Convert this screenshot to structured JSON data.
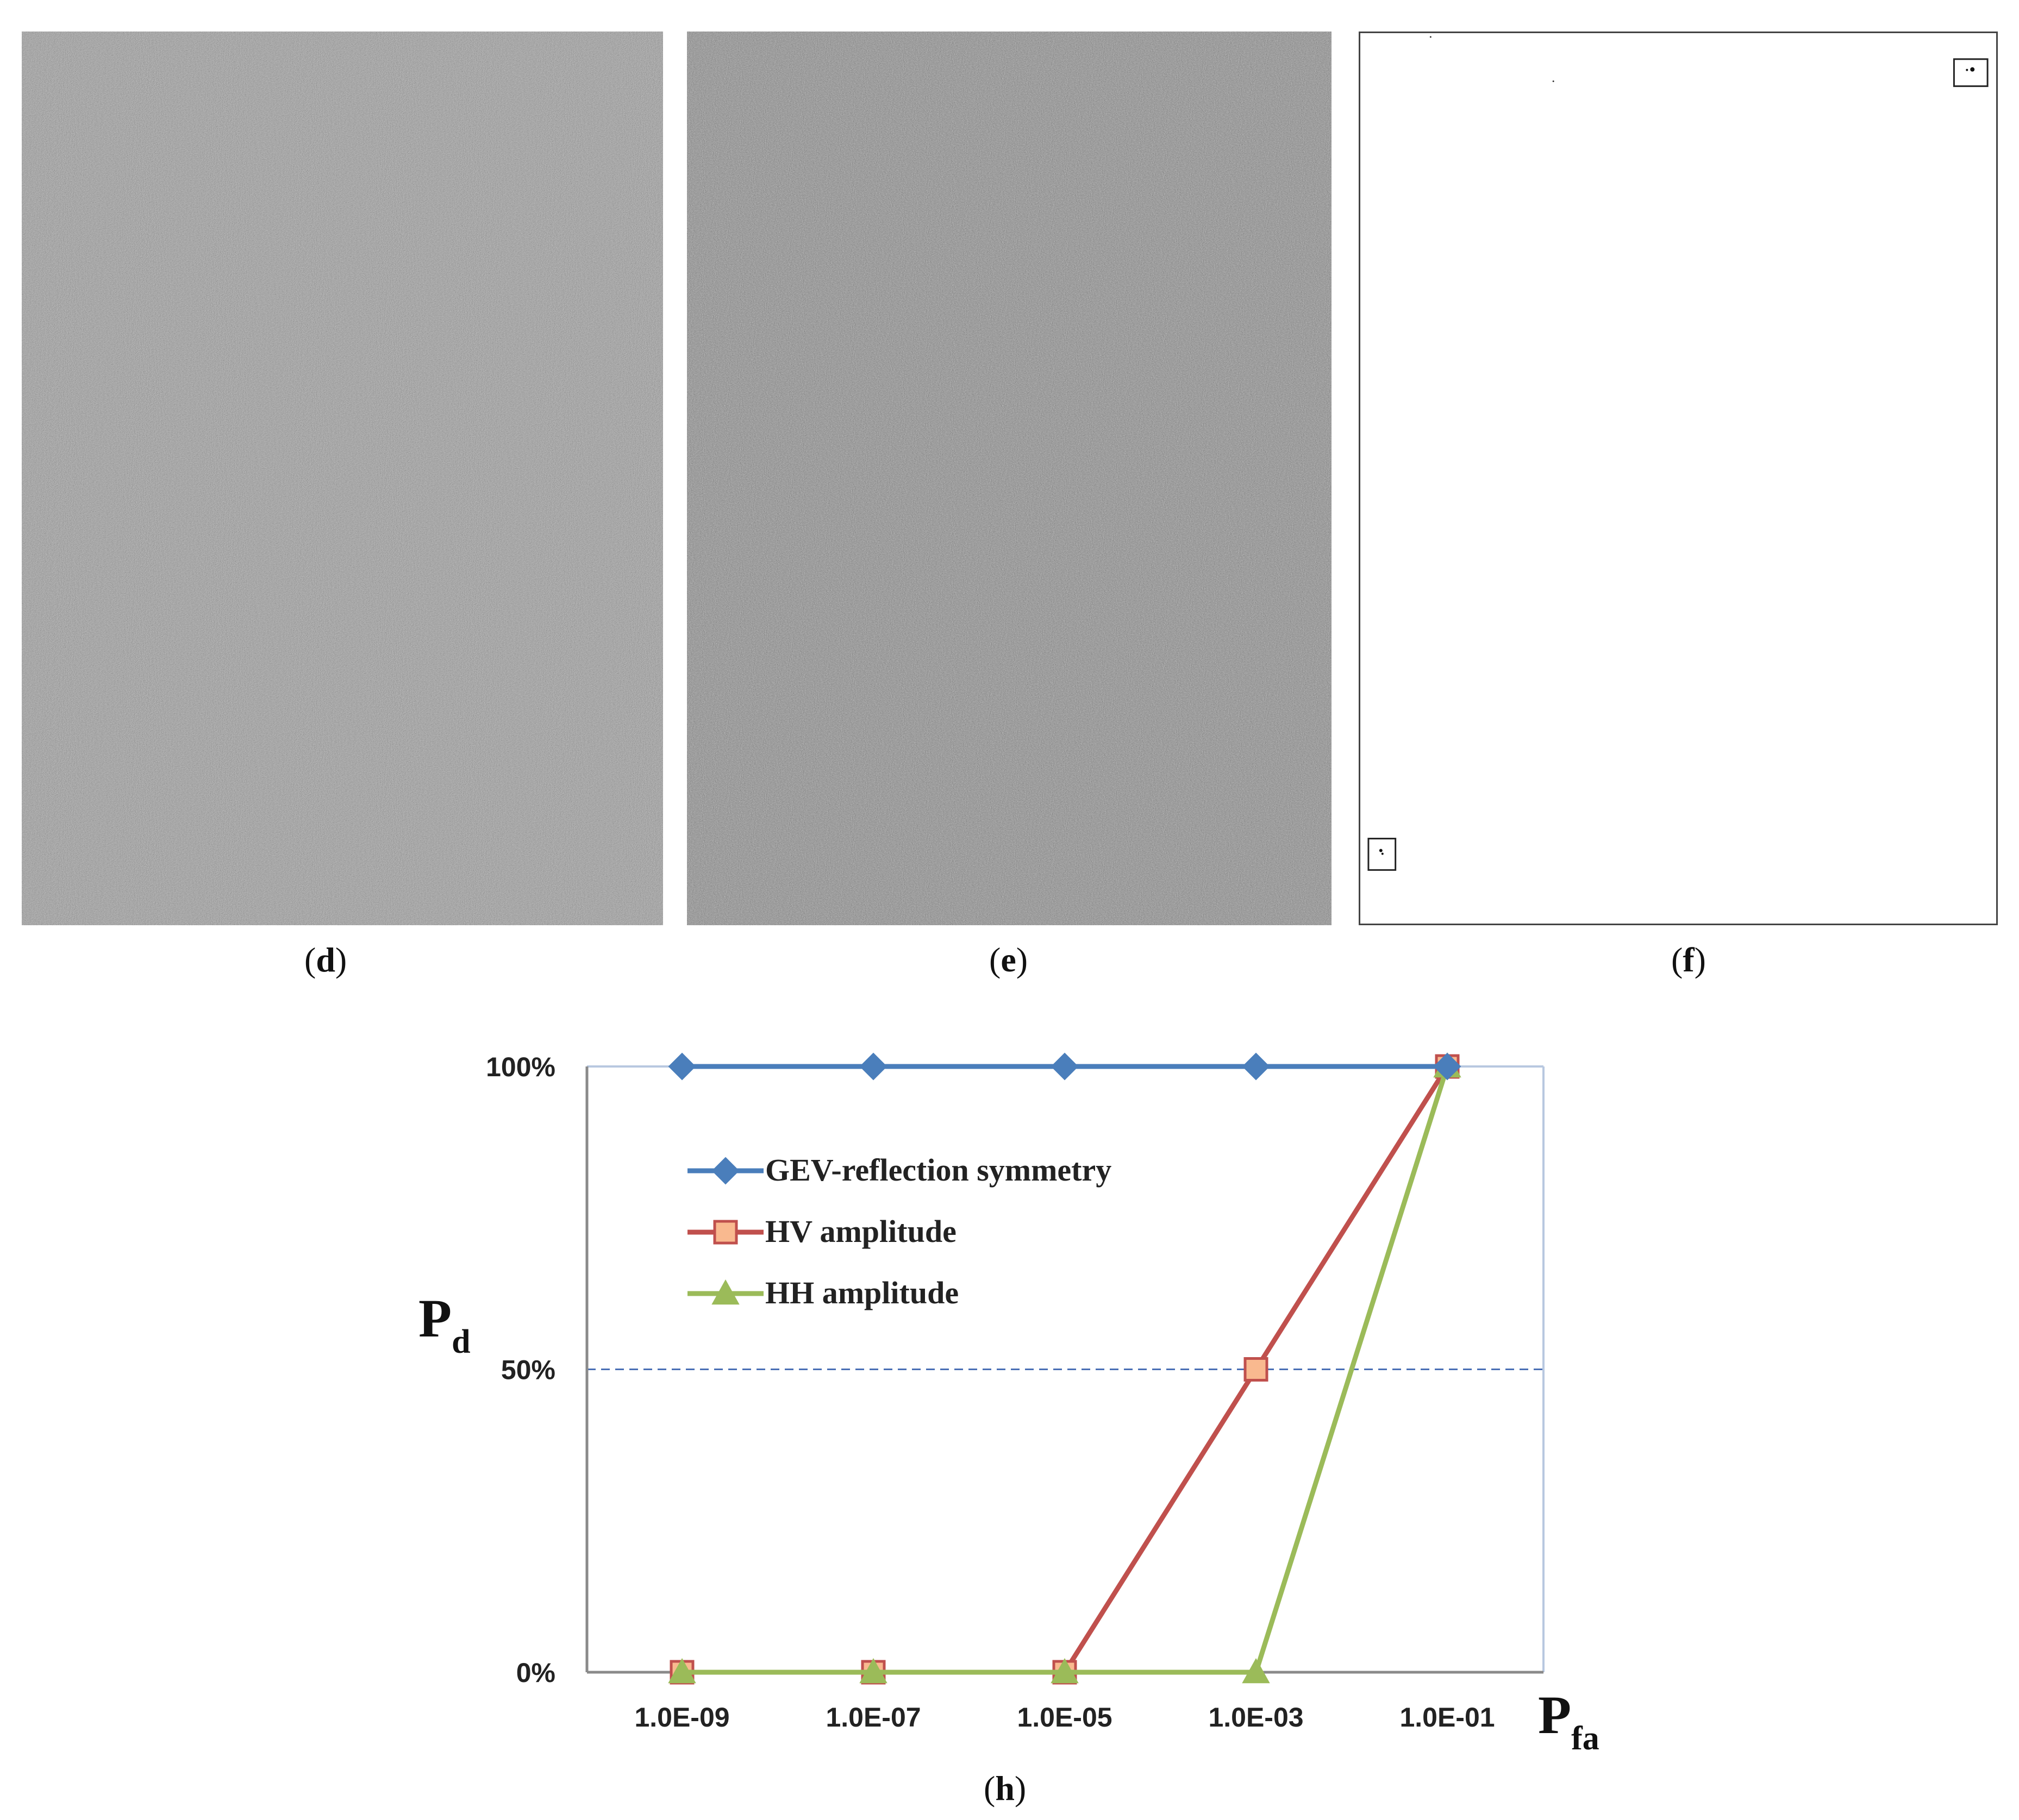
{
  "captions": {
    "d": [
      "(",
      "d",
      ")"
    ],
    "e": [
      "(",
      "e",
      ")"
    ],
    "f": [
      "(",
      "f",
      ")"
    ],
    "h": [
      "(",
      "h",
      ")"
    ]
  },
  "colors": {
    "gev": "#4a7ebb",
    "hv": "#c0504d",
    "hv_marker_fill": "#f9b98f",
    "hh": "#9bbb59",
    "grid": "#4a6fb5"
  },
  "chart_data": {
    "type": "line",
    "x": [
      "1.0E-09",
      "1.0E-07",
      "1.0E-05",
      "1.0E-03",
      "1.0E-01"
    ],
    "xlabel": {
      "main": "P",
      "sub": "fa"
    },
    "ylabel": {
      "main": "P",
      "sub": "d"
    },
    "y_ticks": [
      "0%",
      "50%",
      "100%"
    ],
    "ylim": [
      0,
      100
    ],
    "grid": "horizontal dashed at 50% and 100%",
    "legend_placement": "upper-left inside",
    "series": [
      {
        "name": "GEV-reflection symmetry",
        "values": [
          100,
          100,
          100,
          100,
          100
        ],
        "marker": "diamond"
      },
      {
        "name": "HV amplitude",
        "values": [
          0,
          0,
          0,
          50,
          100
        ],
        "marker": "square"
      },
      {
        "name": "HH amplitude",
        "values": [
          0,
          0,
          0,
          0,
          100
        ],
        "marker": "triangle"
      }
    ]
  }
}
